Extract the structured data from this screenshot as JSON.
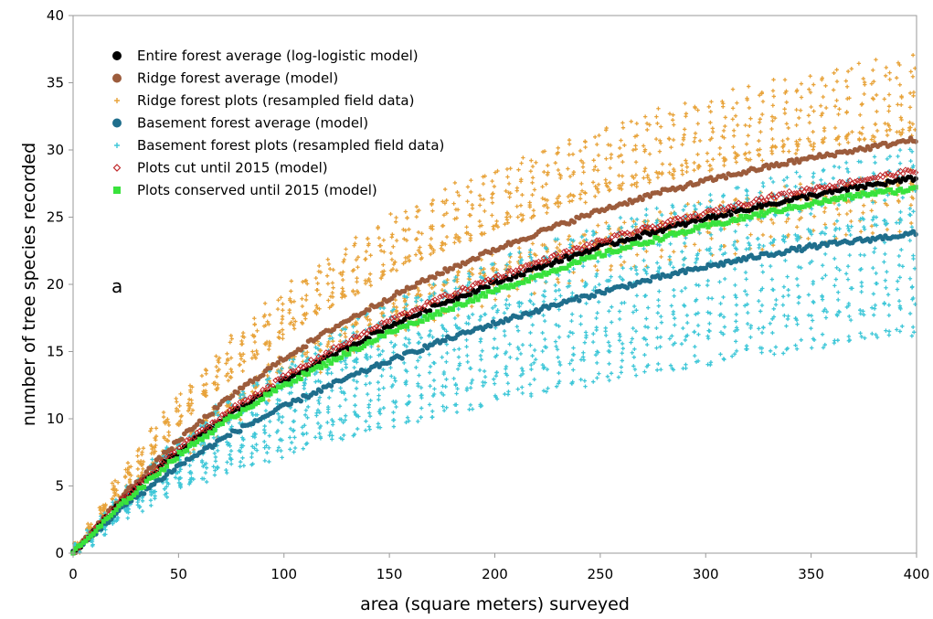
{
  "chart_data": {
    "type": "scatter",
    "xlabel": "area (square meters) surveyed",
    "ylabel": "number of tree species recorded",
    "xlim": [
      0,
      400
    ],
    "ylim": [
      0,
      40
    ],
    "xticks": [
      0,
      50,
      100,
      150,
      200,
      250,
      300,
      350,
      400
    ],
    "yticks": [
      0,
      5,
      10,
      15,
      20,
      25,
      30,
      35,
      40
    ],
    "grid": false,
    "legend_position": "top-left",
    "annotation": "a",
    "x": [
      0,
      25,
      50,
      75,
      100,
      125,
      150,
      175,
      200,
      225,
      250,
      275,
      300,
      325,
      350,
      375,
      400
    ],
    "series": [
      {
        "name": "Entire forest average (log-logistic model)",
        "color": "#000000",
        "marker": "circle",
        "y": [
          0,
          4.1,
          7.6,
          10.4,
          12.8,
          14.9,
          16.9,
          18.6,
          20.1,
          21.5,
          22.8,
          23.9,
          24.9,
          25.8,
          26.6,
          27.3,
          27.9
        ]
      },
      {
        "name": "Ridge forest average (model)",
        "color": "#9c5c3c",
        "marker": "circle",
        "y": [
          0,
          4.5,
          8.4,
          11.7,
          14.5,
          16.9,
          19.0,
          20.9,
          22.6,
          24.1,
          25.5,
          26.7,
          27.7,
          28.6,
          29.4,
          30.1,
          30.8
        ]
      },
      {
        "name": "Ridge forest plots (resampled field data)",
        "color": "#e8a33a",
        "marker": "cross"
      },
      {
        "name": "Basement forest average (model)",
        "color": "#1f6e8c",
        "marker": "circle",
        "y": [
          0,
          3.6,
          6.5,
          8.9,
          10.9,
          12.7,
          14.3,
          15.8,
          17.1,
          18.3,
          19.4,
          20.4,
          21.3,
          22.1,
          22.8,
          23.3,
          23.8
        ]
      },
      {
        "name": "Basement forest plots (resampled field data)",
        "color": "#3ec7d8",
        "marker": "cross"
      },
      {
        "name": "Plots cut until 2015 (model)",
        "color": "#c0282a",
        "marker": "diamond",
        "y": [
          0,
          4.2,
          7.8,
          10.7,
          13.1,
          15.3,
          17.3,
          19.0,
          20.5,
          21.9,
          23.2,
          24.3,
          25.3,
          26.3,
          27.1,
          27.8,
          28.5
        ]
      },
      {
        "name": "Plots conserved until 2015 (model)",
        "color": "#39e23c",
        "marker": "square",
        "y": [
          0,
          3.9,
          7.3,
          10.1,
          12.5,
          14.5,
          16.4,
          18.0,
          19.5,
          20.9,
          22.2,
          23.3,
          24.3,
          25.2,
          26.0,
          26.7,
          27.1
        ]
      }
    ],
    "plot_clouds": [
      {
        "series_name": "Ridge forest plots (resampled field data)",
        "upper": [
          0,
          6.5,
          12.0,
          16.5,
          20.0,
          23.0,
          25.5,
          27.5,
          29.2,
          30.8,
          32.2,
          33.5,
          34.6,
          35.6,
          36.5,
          37.2,
          38.0
        ],
        "lower": [
          0,
          3.5,
          6.0,
          8.5,
          10.8,
          12.5,
          14.2,
          15.6,
          16.8,
          17.8,
          18.6,
          19.3,
          19.9,
          20.4,
          20.8,
          21.1,
          21.4
        ]
      },
      {
        "series_name": "Basement forest plots (resampled field data)",
        "upper": [
          0,
          4.8,
          8.8,
          12.0,
          14.8,
          17.0,
          19.0,
          20.8,
          22.4,
          23.8,
          25.1,
          26.3,
          27.4,
          28.4,
          29.3,
          30.2,
          31.0
        ],
        "lower": [
          0,
          2.8,
          4.6,
          6.0,
          7.2,
          8.2,
          9.1,
          10.0,
          10.9,
          11.7,
          12.4,
          13.1,
          13.7,
          14.3,
          14.9,
          15.4,
          15.8
        ]
      }
    ]
  }
}
